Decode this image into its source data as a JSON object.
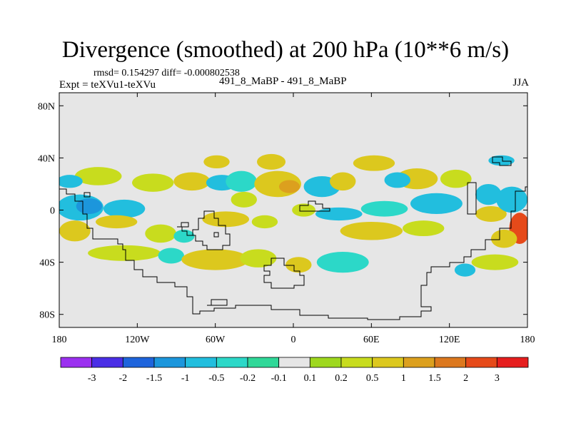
{
  "header": {
    "title": "Divergence (smoothed) at 200 hPa (10**6 m/s)",
    "stats": "rmsd= 0.154297 diff= -0.000802538",
    "expt": "Expt = teXVu1-teXVu",
    "cases": "491_8_MaBP - 491_8_MaBP",
    "season": "JJA"
  },
  "chart_data": {
    "type": "heatmap",
    "title": "Divergence (smoothed) at 200 hPa (10**6 m/s)",
    "xlabel": "",
    "ylabel": "",
    "xlim": [
      -180,
      180
    ],
    "ylim": [
      -90,
      90
    ],
    "x_ticks": [
      {
        "value": -180,
        "label": "180"
      },
      {
        "value": -120,
        "label": "120W"
      },
      {
        "value": -60,
        "label": "60W"
      },
      {
        "value": 0,
        "label": "0"
      },
      {
        "value": 60,
        "label": "60E"
      },
      {
        "value": 120,
        "label": "120E"
      },
      {
        "value": 180,
        "label": "180"
      }
    ],
    "y_ticks": [
      {
        "value": 80,
        "label": "80N"
      },
      {
        "value": 40,
        "label": "40N"
      },
      {
        "value": 0,
        "label": "0"
      },
      {
        "value": -40,
        "label": "40S"
      },
      {
        "value": -80,
        "label": "80S"
      }
    ],
    "colorbar": {
      "colors": [
        "#9b30f0",
        "#4a2ee6",
        "#1e64dc",
        "#1c96dc",
        "#22bede",
        "#2cd8c8",
        "#30d898",
        "#e6e6e6",
        "#9ed81e",
        "#c8dc1e",
        "#dcc81e",
        "#dca01e",
        "#dc781e",
        "#e64a1a",
        "#e61e1e"
      ],
      "labels": [
        "-3",
        "-2",
        "-1.5",
        "-1",
        "-0.5",
        "-0.2",
        "-0.1",
        "0.1",
        "0.2",
        "0.5",
        "1",
        "1.5",
        "2",
        "3"
      ]
    },
    "field_blobs": [
      {
        "lon": -164,
        "lat": 2,
        "rlon": 18,
        "rlat": 10,
        "level": 4
      },
      {
        "lon": -157,
        "lat": 3,
        "rlon": 10,
        "rlat": 6,
        "level": 3
      },
      {
        "lon": -130,
        "lat": 1,
        "rlon": 16,
        "rlat": 7,
        "level": 4
      },
      {
        "lon": -168,
        "lat": -16,
        "rlon": 12,
        "rlat": 8,
        "level": 10
      },
      {
        "lon": -136,
        "lat": -9,
        "rlon": 16,
        "rlat": 5,
        "level": 10
      },
      {
        "lon": -102,
        "lat": -18,
        "rlon": 12,
        "rlat": 7,
        "level": 9
      },
      {
        "lon": -130,
        "lat": -33,
        "rlon": 28,
        "rlat": 6,
        "level": 9
      },
      {
        "lon": -94,
        "lat": -35,
        "rlon": 10,
        "rlat": 6,
        "level": 5
      },
      {
        "lon": -84,
        "lat": -20,
        "rlon": 8,
        "rlat": 5,
        "level": 5
      },
      {
        "lon": -108,
        "lat": 21,
        "rlon": 16,
        "rlat": 7,
        "level": 9
      },
      {
        "lon": -78,
        "lat": 22,
        "rlon": 14,
        "rlat": 7,
        "level": 10
      },
      {
        "lon": -55,
        "lat": 21,
        "rlon": 12,
        "rlat": 6,
        "level": 4
      },
      {
        "lon": -38,
        "lat": 8,
        "rlon": 10,
        "rlat": 6,
        "level": 9
      },
      {
        "lon": -52,
        "lat": -7,
        "rlon": 18,
        "rlat": 6,
        "level": 10
      },
      {
        "lon": -22,
        "lat": -9,
        "rlon": 10,
        "rlat": 5,
        "level": 9
      },
      {
        "lon": -60,
        "lat": -38,
        "rlon": 26,
        "rlat": 8,
        "level": 10
      },
      {
        "lon": -27,
        "lat": -37,
        "rlon": 14,
        "rlat": 7,
        "level": 9
      },
      {
        "lon": -17,
        "lat": 37,
        "rlon": 11,
        "rlat": 6,
        "level": 10
      },
      {
        "lon": -59,
        "lat": 37,
        "rlon": 10,
        "rlat": 5,
        "level": 10
      },
      {
        "lon": -40,
        "lat": 22,
        "rlon": 12,
        "rlat": 8,
        "level": 5
      },
      {
        "lon": -12,
        "lat": 20,
        "rlon": 18,
        "rlat": 10,
        "level": 10
      },
      {
        "lon": -3,
        "lat": 18,
        "rlon": 8,
        "rlat": 5,
        "level": 11
      },
      {
        "lon": 22,
        "lat": 18,
        "rlon": 14,
        "rlat": 8,
        "level": 4
      },
      {
        "lon": 38,
        "lat": 22,
        "rlon": 10,
        "rlat": 7,
        "level": 10
      },
      {
        "lon": 8,
        "lat": 0,
        "rlon": 9,
        "rlat": 5,
        "level": 9
      },
      {
        "lon": 35,
        "lat": -3,
        "rlon": 18,
        "rlat": 5,
        "level": 4
      },
      {
        "lon": 70,
        "lat": 1,
        "rlon": 18,
        "rlat": 6,
        "level": 5
      },
      {
        "lon": 60,
        "lat": -16,
        "rlon": 24,
        "rlat": 7,
        "level": 10
      },
      {
        "lon": 100,
        "lat": -14,
        "rlon": 16,
        "rlat": 6,
        "level": 9
      },
      {
        "lon": 38,
        "lat": -40,
        "rlon": 20,
        "rlat": 8,
        "level": 5
      },
      {
        "lon": 4,
        "lat": -42,
        "rlon": 10,
        "rlat": 6,
        "level": 10
      },
      {
        "lon": 62,
        "lat": 36,
        "rlon": 16,
        "rlat": 6,
        "level": 10
      },
      {
        "lon": 95,
        "lat": 24,
        "rlon": 16,
        "rlat": 8,
        "level": 10
      },
      {
        "lon": 80,
        "lat": 23,
        "rlon": 10,
        "rlat": 6,
        "level": 4
      },
      {
        "lon": 125,
        "lat": 24,
        "rlon": 12,
        "rlat": 7,
        "level": 9
      },
      {
        "lon": 110,
        "lat": 5,
        "rlon": 20,
        "rlat": 8,
        "level": 4
      },
      {
        "lon": 150,
        "lat": 12,
        "rlon": 10,
        "rlat": 8,
        "level": 4
      },
      {
        "lon": 152,
        "lat": -3,
        "rlon": 12,
        "rlat": 6,
        "level": 10
      },
      {
        "lon": 168,
        "lat": 8,
        "rlon": 12,
        "rlat": 10,
        "level": 4
      },
      {
        "lon": 174,
        "lat": -14,
        "rlon": 8,
        "rlat": 12,
        "level": 13
      },
      {
        "lon": 162,
        "lat": -22,
        "rlon": 10,
        "rlat": 7,
        "level": 10
      },
      {
        "lon": 155,
        "lat": -40,
        "rlon": 18,
        "rlat": 6,
        "level": 9
      },
      {
        "lon": 132,
        "lat": -46,
        "rlon": 8,
        "rlat": 5,
        "level": 4
      },
      {
        "lon": 160,
        "lat": 38,
        "rlon": 10,
        "rlat": 4,
        "level": 4
      },
      {
        "lon": -150,
        "lat": 26,
        "rlon": 18,
        "rlat": 7,
        "level": 9
      },
      {
        "lon": -172,
        "lat": 22,
        "rlon": 10,
        "rlat": 5,
        "level": 4
      }
    ]
  }
}
